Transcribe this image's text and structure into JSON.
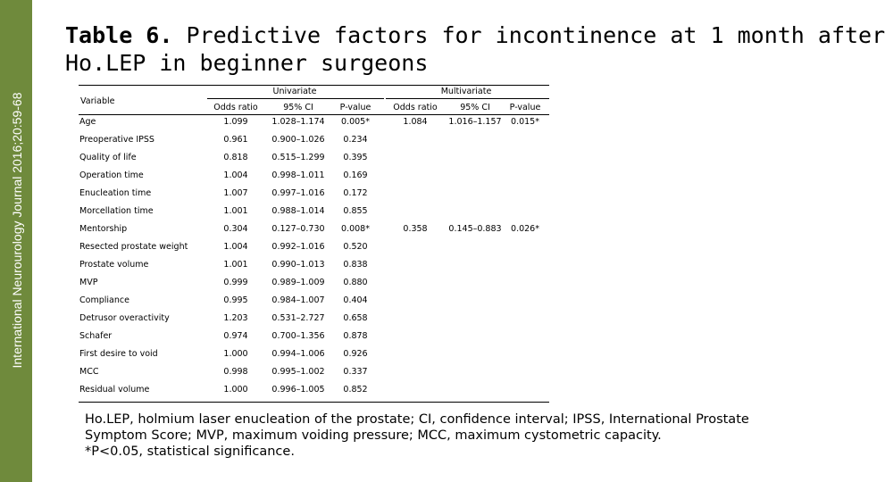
{
  "journal": "International Neurourology Journal 2016;20:59-68",
  "header": {
    "title_bold": "Table 6.",
    "title_line1": "Predictive factors for incontinence at 1 month after",
    "title_line2": "Ho.LEP in beginner surgeons"
  },
  "table": {
    "variable_header": "Variable",
    "groups": [
      "Univariate",
      "Multivariate"
    ],
    "subheaders": [
      "Odds ratio",
      "95% CI",
      "P-value"
    ],
    "rows": [
      {
        "variable": "Age",
        "univariate": [
          "1.099",
          "1.028–1.174",
          "0.005*"
        ],
        "multivariate": [
          "1.084",
          "1.016–1.157",
          "0.015*"
        ]
      },
      {
        "variable": "Preoperative IPSS",
        "univariate": [
          "0.961",
          "0.900–1.026",
          "0.234"
        ]
      },
      {
        "variable": "Quality of life",
        "univariate": [
          "0.818",
          "0.515–1.299",
          "0.395"
        ]
      },
      {
        "variable": "Operation time",
        "univariate": [
          "1.004",
          "0.998–1.011",
          "0.169"
        ]
      },
      {
        "variable": "Enucleation time",
        "univariate": [
          "1.007",
          "0.997–1.016",
          "0.172"
        ]
      },
      {
        "variable": "Morcellation time",
        "univariate": [
          "1.001",
          "0.988–1.014",
          "0.855"
        ]
      },
      {
        "variable": "Mentorship",
        "univariate": [
          "0.304",
          "0.127–0.730",
          "0.008*"
        ],
        "multivariate": [
          "0.358",
          "0.145–0.883",
          "0.026*"
        ]
      },
      {
        "variable": "Resected prostate weight",
        "univariate": [
          "1.004",
          "0.992–1.016",
          "0.520"
        ]
      },
      {
        "variable": "Prostate volume",
        "univariate": [
          "1.001",
          "0.990–1.013",
          "0.838"
        ]
      },
      {
        "variable": "MVP",
        "univariate": [
          "0.999",
          "0.989–1.009",
          "0.880"
        ]
      },
      {
        "variable": "Compliance",
        "univariate": [
          "0.995",
          "0.984–1.007",
          "0.404"
        ]
      },
      {
        "variable": "Detrusor overactivity",
        "univariate": [
          "1.203",
          "0.531–2.727",
          "0.658"
        ]
      },
      {
        "variable": "Schafer",
        "univariate": [
          "0.974",
          "0.700–1.356",
          "0.878"
        ]
      },
      {
        "variable": "First desire to void",
        "univariate": [
          "1.000",
          "0.994–1.006",
          "0.926"
        ]
      },
      {
        "variable": "MCC",
        "univariate": [
          "0.998",
          "0.995–1.002",
          "0.337"
        ]
      },
      {
        "variable": "Residual volume",
        "univariate": [
          "1.000",
          "0.996–1.005",
          "0.852"
        ]
      }
    ]
  },
  "footnote": [
    "Ho.LEP, holmium laser enucleation of the prostate; CI, confidence interval; IPSS, International Prostate",
    "Symptom Score; MVP, maximum voiding pressure; MCC, maximum cystometric capacity.",
    "*P<0.05, statistical significance."
  ]
}
